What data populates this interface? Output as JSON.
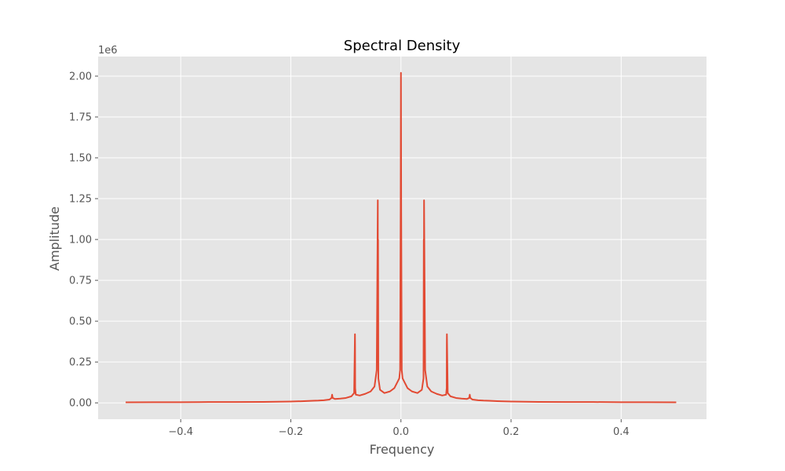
{
  "chart_data": {
    "type": "line",
    "title": "Spectral Density",
    "xlabel": "Frequency",
    "ylabel": "Amplitude",
    "y_offset_label": "1e6",
    "xlim": [
      -0.55,
      0.555
    ],
    "ylim": [
      -0.1,
      2.12
    ],
    "grid": true,
    "colors": {
      "background": "#e5e5e5",
      "grid": "#ffffff",
      "series": "#e24a33",
      "tick": "#555555"
    },
    "x_ticks": [
      {
        "value": -0.4,
        "label": "−0.4"
      },
      {
        "value": -0.2,
        "label": "−0.2"
      },
      {
        "value": 0.0,
        "label": "0.0"
      },
      {
        "value": 0.2,
        "label": "0.2"
      },
      {
        "value": 0.4,
        "label": "0.4"
      }
    ],
    "y_ticks": [
      {
        "value": 0.0,
        "label": "0.00"
      },
      {
        "value": 0.25,
        "label": "0.25"
      },
      {
        "value": 0.5,
        "label": "0.50"
      },
      {
        "value": 0.75,
        "label": "0.75"
      },
      {
        "value": 1.0,
        "label": "1.00"
      },
      {
        "value": 1.25,
        "label": "1.25"
      },
      {
        "value": 1.5,
        "label": "1.50"
      },
      {
        "value": 1.75,
        "label": "1.75"
      },
      {
        "value": 2.0,
        "label": "2.00"
      }
    ],
    "series": [
      {
        "x": [
          -0.5,
          -0.45,
          -0.4,
          -0.35,
          -0.3,
          -0.25,
          -0.2,
          -0.18,
          -0.16,
          -0.15,
          -0.14,
          -0.13,
          -0.126,
          -0.125,
          -0.124,
          -0.12,
          -0.11,
          -0.1,
          -0.09,
          -0.085,
          -0.0835,
          -0.0833,
          -0.0831,
          -0.082,
          -0.075,
          -0.065,
          -0.055,
          -0.048,
          -0.044,
          -0.042,
          -0.0417,
          -0.0415,
          -0.041,
          -0.038,
          -0.03,
          -0.02,
          -0.012,
          -0.006,
          -0.003,
          -0.0015,
          -0.0005,
          0.0,
          0.0005,
          0.0015,
          0.003,
          0.006,
          0.012,
          0.02,
          0.03,
          0.038,
          0.041,
          0.0415,
          0.0417,
          0.042,
          0.044,
          0.048,
          0.055,
          0.065,
          0.075,
          0.082,
          0.0831,
          0.0833,
          0.0835,
          0.085,
          0.09,
          0.1,
          0.11,
          0.12,
          0.124,
          0.125,
          0.126,
          0.13,
          0.14,
          0.15,
          0.16,
          0.18,
          0.2,
          0.25,
          0.3,
          0.35,
          0.4,
          0.45,
          0.5
        ],
        "y": [
          0.003,
          0.004,
          0.004,
          0.005,
          0.005,
          0.006,
          0.008,
          0.01,
          0.013,
          0.014,
          0.016,
          0.02,
          0.03,
          0.05,
          0.03,
          0.024,
          0.026,
          0.03,
          0.04,
          0.06,
          0.42,
          0.35,
          0.09,
          0.05,
          0.045,
          0.055,
          0.07,
          0.1,
          0.2,
          1.24,
          0.5,
          1.0,
          0.15,
          0.08,
          0.06,
          0.07,
          0.09,
          0.13,
          0.15,
          0.2,
          1.19,
          2.02,
          1.19,
          0.2,
          0.15,
          0.13,
          0.09,
          0.07,
          0.06,
          0.08,
          0.15,
          1.0,
          0.5,
          1.24,
          0.2,
          0.1,
          0.07,
          0.055,
          0.045,
          0.05,
          0.09,
          0.35,
          0.42,
          0.06,
          0.04,
          0.03,
          0.026,
          0.024,
          0.03,
          0.05,
          0.03,
          0.02,
          0.016,
          0.014,
          0.013,
          0.01,
          0.008,
          0.006,
          0.005,
          0.005,
          0.004,
          0.004,
          0.003
        ]
      }
    ]
  }
}
